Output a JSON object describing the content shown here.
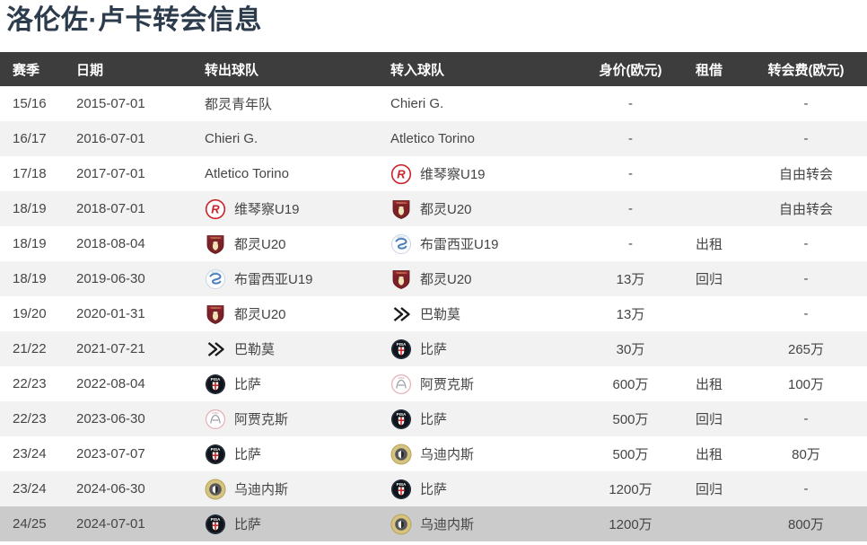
{
  "page": {
    "title": "洛伦佐·卢卡转会信息"
  },
  "colors": {
    "title_text": "#2d3c4d",
    "header_bg": "#3d3d3d",
    "header_text": "#ffffff",
    "body_text": "#454545",
    "row_alt": "#f2f2f2",
    "row_highlight": "#cbcbcb",
    "torino_maroon": "#7d2128",
    "pisa_black": "#10151b",
    "udinese_gold": "#d6c47e",
    "vicenza_red": "#cc2229"
  },
  "table": {
    "columns": [
      {
        "key": "season",
        "label": "赛季"
      },
      {
        "key": "date",
        "label": "日期"
      },
      {
        "key": "from",
        "label": "转出球队"
      },
      {
        "key": "to",
        "label": "转入球队"
      },
      {
        "key": "market_value",
        "label": "身价(欧元)"
      },
      {
        "key": "loan",
        "label": "租借"
      },
      {
        "key": "fee",
        "label": "转会费(欧元)"
      }
    ],
    "rows": [
      {
        "season": "15/16",
        "date": "2015-07-01",
        "from": {
          "name": "都灵青年队",
          "icon": ""
        },
        "to": {
          "name": "Chieri G.",
          "icon": ""
        },
        "market_value": "-",
        "loan": "",
        "fee": "-",
        "highlight": false
      },
      {
        "season": "16/17",
        "date": "2016-07-01",
        "from": {
          "name": "Chieri G.",
          "icon": ""
        },
        "to": {
          "name": "Atletico Torino",
          "icon": ""
        },
        "market_value": "-",
        "loan": "",
        "fee": "-",
        "highlight": false
      },
      {
        "season": "17/18",
        "date": "2017-07-01",
        "from": {
          "name": "Atletico Torino",
          "icon": ""
        },
        "to": {
          "name": "维琴察U19",
          "icon": "vicenza"
        },
        "market_value": "-",
        "loan": "",
        "fee": "自由转会",
        "highlight": false
      },
      {
        "season": "18/19",
        "date": "2018-07-01",
        "from": {
          "name": "维琴察U19",
          "icon": "vicenza"
        },
        "to": {
          "name": "都灵U20",
          "icon": "torino"
        },
        "market_value": "-",
        "loan": "",
        "fee": "自由转会",
        "highlight": false
      },
      {
        "season": "18/19",
        "date": "2018-08-04",
        "from": {
          "name": "都灵U20",
          "icon": "torino"
        },
        "to": {
          "name": "布雷西亚U19",
          "icon": "brescia"
        },
        "market_value": "-",
        "loan": "出租",
        "fee": "-",
        "highlight": false
      },
      {
        "season": "18/19",
        "date": "2019-06-30",
        "from": {
          "name": "布雷西亚U19",
          "icon": "brescia"
        },
        "to": {
          "name": "都灵U20",
          "icon": "torino"
        },
        "market_value": "13万",
        "loan": "回归",
        "fee": "-",
        "highlight": false
      },
      {
        "season": "19/20",
        "date": "2020-01-31",
        "from": {
          "name": "都灵U20",
          "icon": "torino"
        },
        "to": {
          "name": "巴勒莫",
          "icon": "palermo"
        },
        "market_value": "13万",
        "loan": "",
        "fee": "-",
        "highlight": false
      },
      {
        "season": "21/22",
        "date": "2021-07-21",
        "from": {
          "name": "巴勒莫",
          "icon": "palermo"
        },
        "to": {
          "name": "比萨",
          "icon": "pisa"
        },
        "market_value": "30万",
        "loan": "",
        "fee": "265万",
        "highlight": false
      },
      {
        "season": "22/23",
        "date": "2022-08-04",
        "from": {
          "name": "比萨",
          "icon": "pisa"
        },
        "to": {
          "name": "阿贾克斯",
          "icon": "ajax"
        },
        "market_value": "600万",
        "loan": "出租",
        "fee": "100万",
        "highlight": false
      },
      {
        "season": "22/23",
        "date": "2023-06-30",
        "from": {
          "name": "阿贾克斯",
          "icon": "ajax"
        },
        "to": {
          "name": "比萨",
          "icon": "pisa"
        },
        "market_value": "500万",
        "loan": "回归",
        "fee": "-",
        "highlight": false
      },
      {
        "season": "23/24",
        "date": "2023-07-07",
        "from": {
          "name": "比萨",
          "icon": "pisa"
        },
        "to": {
          "name": "乌迪内斯",
          "icon": "udinese"
        },
        "market_value": "500万",
        "loan": "出租",
        "fee": "80万",
        "highlight": false
      },
      {
        "season": "23/24",
        "date": "2024-06-30",
        "from": {
          "name": "乌迪内斯",
          "icon": "udinese"
        },
        "to": {
          "name": "比萨",
          "icon": "pisa"
        },
        "market_value": "1200万",
        "loan": "回归",
        "fee": "-",
        "highlight": false
      },
      {
        "season": "24/25",
        "date": "2024-07-01",
        "from": {
          "name": "比萨",
          "icon": "pisa"
        },
        "to": {
          "name": "乌迪内斯",
          "icon": "udinese"
        },
        "market_value": "1200万",
        "loan": "",
        "fee": "800万",
        "highlight": true
      }
    ]
  }
}
